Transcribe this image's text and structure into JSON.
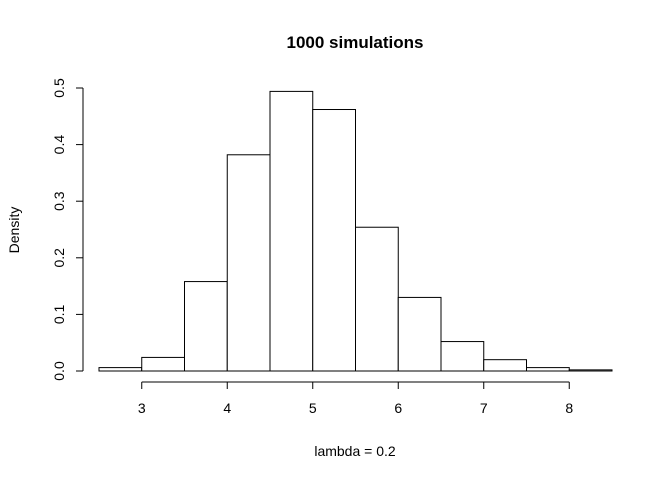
{
  "chart_data": {
    "type": "bar",
    "title": "1000 simulations",
    "xlabel": "lambda = 0.2",
    "ylabel": "Density",
    "bin_edges": [
      2.5,
      3.0,
      3.5,
      4.0,
      4.5,
      5.0,
      5.5,
      6.0,
      6.5,
      7.0,
      7.5,
      8.0,
      8.5
    ],
    "values": [
      0.006,
      0.024,
      0.158,
      0.382,
      0.494,
      0.462,
      0.254,
      0.13,
      0.052,
      0.02,
      0.006,
      0.002
    ],
    "xlim": [
      2.5,
      8.5
    ],
    "ylim": [
      0,
      0.5
    ],
    "x_ticks": [
      3,
      4,
      5,
      6,
      7,
      8
    ],
    "x_tick_labels": [
      "3",
      "4",
      "5",
      "6",
      "7",
      "8"
    ],
    "y_ticks": [
      0.0,
      0.1,
      0.2,
      0.3,
      0.4,
      0.5
    ],
    "y_tick_labels": [
      "0.0",
      "0.1",
      "0.2",
      "0.3",
      "0.4",
      "0.5"
    ],
    "grid": false,
    "colors": {
      "bar_fill": "#ffffff",
      "bar_stroke": "#000000"
    }
  }
}
